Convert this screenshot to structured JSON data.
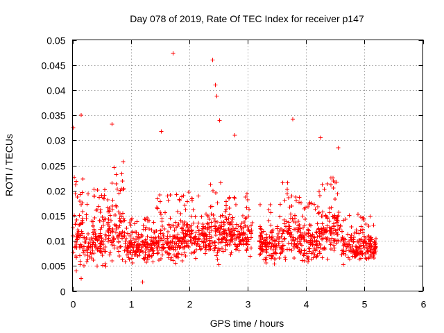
{
  "chart_data": {
    "type": "scatter",
    "title": "Day 078 of 2019, Rate Of TEC Index for receiver p147",
    "xlabel": "GPS time / hours",
    "ylabel": "ROTI / TECUs",
    "xlim": [
      0,
      6
    ],
    "ylim": [
      0,
      0.05
    ],
    "x_ticks": [
      "0",
      "1",
      "2",
      "3",
      "4",
      "5",
      "6"
    ],
    "y_ticks": [
      "0",
      "0.005",
      "0.01",
      "0.015",
      "0.02",
      "0.025",
      "0.03",
      "0.035",
      "0.04",
      "0.045",
      "0.05"
    ],
    "grid": true,
    "marker": "+",
    "series_color": "#ff0000",
    "x_data_range": [
      0.0,
      5.2
    ],
    "data_gap_hours": [
      3.08,
      3.2
    ],
    "notable_points": [
      {
        "x": 0.01,
        "y": 0.0325
      },
      {
        "x": 0.15,
        "y": 0.035
      },
      {
        "x": 0.68,
        "y": 0.0332
      },
      {
        "x": 1.52,
        "y": 0.0318
      },
      {
        "x": 1.72,
        "y": 0.0473
      },
      {
        "x": 2.4,
        "y": 0.046
      },
      {
        "x": 2.45,
        "y": 0.041
      },
      {
        "x": 2.47,
        "y": 0.0388
      },
      {
        "x": 2.52,
        "y": 0.034
      },
      {
        "x": 2.78,
        "y": 0.031
      },
      {
        "x": 3.77,
        "y": 0.0342
      },
      {
        "x": 4.25,
        "y": 0.0305
      },
      {
        "x": 4.55,
        "y": 0.0285
      },
      {
        "x": 1.2,
        "y": 0.0018
      },
      {
        "x": 0.15,
        "y": 0.0025
      }
    ],
    "density_profile": [
      {
        "x_start": 0.0,
        "x_end": 0.25,
        "y_base": 0.0105,
        "y_spread": 0.009
      },
      {
        "x_start": 0.25,
        "x_end": 0.6,
        "y_base": 0.0095,
        "y_spread": 0.008
      },
      {
        "x_start": 0.6,
        "x_end": 0.9,
        "y_base": 0.012,
        "y_spread": 0.01
      },
      {
        "x_start": 0.9,
        "x_end": 1.4,
        "y_base": 0.0085,
        "y_spread": 0.005
      },
      {
        "x_start": 1.4,
        "x_end": 1.9,
        "y_base": 0.0095,
        "y_spread": 0.007
      },
      {
        "x_start": 1.9,
        "x_end": 2.3,
        "y_base": 0.0105,
        "y_spread": 0.007
      },
      {
        "x_start": 2.3,
        "x_end": 2.6,
        "y_base": 0.011,
        "y_spread": 0.008
      },
      {
        "x_start": 2.6,
        "x_end": 3.08,
        "y_base": 0.011,
        "y_spread": 0.006
      },
      {
        "x_start": 3.2,
        "x_end": 3.6,
        "y_base": 0.009,
        "y_spread": 0.006
      },
      {
        "x_start": 3.6,
        "x_end": 3.9,
        "y_base": 0.011,
        "y_spread": 0.008
      },
      {
        "x_start": 3.9,
        "x_end": 4.2,
        "y_base": 0.0095,
        "y_spread": 0.006
      },
      {
        "x_start": 4.2,
        "x_end": 4.6,
        "y_base": 0.0115,
        "y_spread": 0.008
      },
      {
        "x_start": 4.6,
        "x_end": 5.2,
        "y_base": 0.0085,
        "y_spread": 0.005
      }
    ]
  }
}
